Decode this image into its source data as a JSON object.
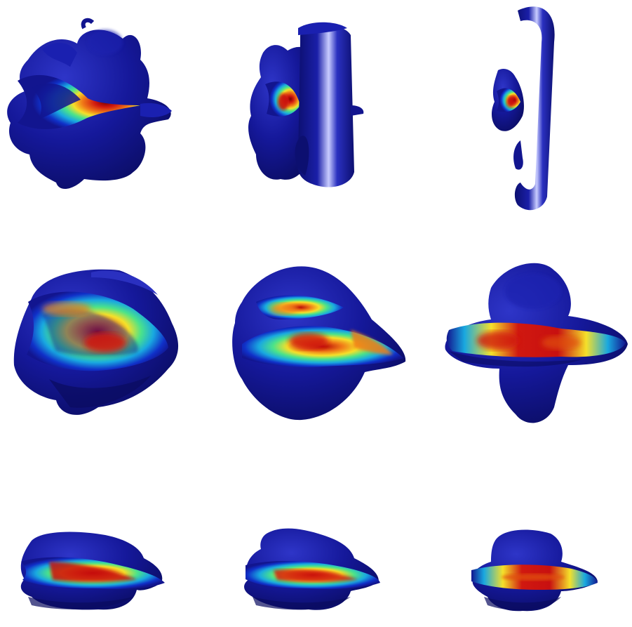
{
  "figure": {
    "colormap": [
      "#0a0a7a",
      "#1030c8",
      "#19a8e0",
      "#4be38a",
      "#f5e02a",
      "#f07a18",
      "#c81010",
      "#7a0000"
    ],
    "surface_color": "#12158f",
    "highlight_color": "#8a90ff",
    "panels": [
      {
        "row": 1,
        "col": 1,
        "name": "panel-r1c1-blob-with-cone-slice"
      },
      {
        "row": 1,
        "col": 2,
        "name": "panel-r1c2-blob-with-ring"
      },
      {
        "row": 1,
        "col": 3,
        "name": "panel-r1c3-ring-with-small-slice"
      },
      {
        "row": 2,
        "col": 1,
        "name": "panel-r2c1-fan-slice"
      },
      {
        "row": 2,
        "col": 2,
        "name": "panel-r2c2-diamond-blob"
      },
      {
        "row": 2,
        "col": 3,
        "name": "panel-r2c3-cross-blob"
      },
      {
        "row": 3,
        "col": 1,
        "name": "panel-r3c1-flat-slice"
      },
      {
        "row": 3,
        "col": 2,
        "name": "panel-r3c2-flat-slice"
      },
      {
        "row": 3,
        "col": 3,
        "name": "panel-r3c3-flat-slice"
      }
    ]
  }
}
